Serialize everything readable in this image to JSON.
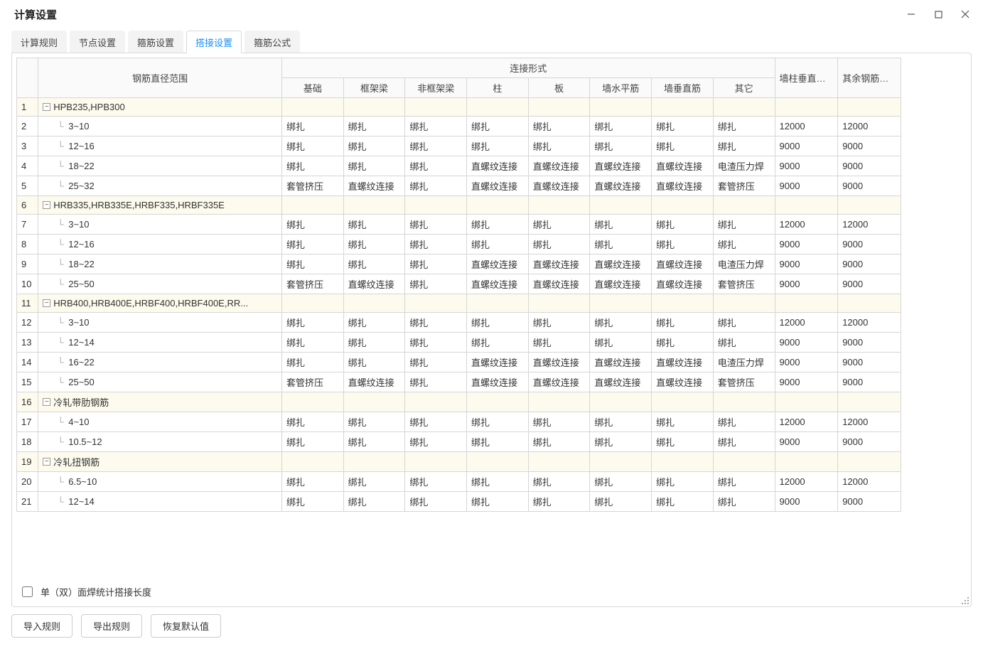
{
  "window": {
    "title": "计算设置"
  },
  "tabs": {
    "items": [
      {
        "id": "rule",
        "label": "计算规则"
      },
      {
        "id": "node",
        "label": "节点设置"
      },
      {
        "id": "stirrup",
        "label": "箍筋设置"
      },
      {
        "id": "lap",
        "label": "搭接设置"
      },
      {
        "id": "formula",
        "label": "箍筋公式"
      }
    ],
    "active_id": "lap"
  },
  "grid": {
    "header": {
      "range_col": "钢筋直径范围",
      "conn_group": "连接形式",
      "conn_cols": [
        "基础",
        "框架梁",
        "非框架梁",
        "柱",
        "板",
        "墙水平筋",
        "墙垂直筋",
        "其它"
      ],
      "fix_col_1": "墙柱垂直筋定尺",
      "fix_col_2": "其余钢筋定尺"
    },
    "rows": [
      {
        "n": 1,
        "type": "group",
        "label": "HPB235,HPB300"
      },
      {
        "n": 2,
        "type": "leaf",
        "label": "3~10",
        "conn": [
          "绑扎",
          "绑扎",
          "绑扎",
          "绑扎",
          "绑扎",
          "绑扎",
          "绑扎",
          "绑扎"
        ],
        "f1": "12000",
        "f2": "12000"
      },
      {
        "n": 3,
        "type": "leaf",
        "label": "12~16",
        "conn": [
          "绑扎",
          "绑扎",
          "绑扎",
          "绑扎",
          "绑扎",
          "绑扎",
          "绑扎",
          "绑扎"
        ],
        "f1": "9000",
        "f2": "9000"
      },
      {
        "n": 4,
        "type": "leaf",
        "label": "18~22",
        "conn": [
          "绑扎",
          "绑扎",
          "绑扎",
          "直螺纹连接",
          "直螺纹连接",
          "直螺纹连接",
          "直螺纹连接",
          "电渣压力焊"
        ],
        "f1": "9000",
        "f2": "9000"
      },
      {
        "n": 5,
        "type": "leaf",
        "label": "25~32",
        "conn": [
          "套管挤压",
          "直螺纹连接",
          "绑扎",
          "直螺纹连接",
          "直螺纹连接",
          "直螺纹连接",
          "直螺纹连接",
          "套管挤压"
        ],
        "f1": "9000",
        "f2": "9000"
      },
      {
        "n": 6,
        "type": "group",
        "label": "HRB335,HRB335E,HRBF335,HRBF335E"
      },
      {
        "n": 7,
        "type": "leaf",
        "label": "3~10",
        "conn": [
          "绑扎",
          "绑扎",
          "绑扎",
          "绑扎",
          "绑扎",
          "绑扎",
          "绑扎",
          "绑扎"
        ],
        "f1": "12000",
        "f2": "12000"
      },
      {
        "n": 8,
        "type": "leaf",
        "label": "12~16",
        "conn": [
          "绑扎",
          "绑扎",
          "绑扎",
          "绑扎",
          "绑扎",
          "绑扎",
          "绑扎",
          "绑扎"
        ],
        "f1": "9000",
        "f2": "9000"
      },
      {
        "n": 9,
        "type": "leaf",
        "label": "18~22",
        "conn": [
          "绑扎",
          "绑扎",
          "绑扎",
          "直螺纹连接",
          "直螺纹连接",
          "直螺纹连接",
          "直螺纹连接",
          "电渣压力焊"
        ],
        "f1": "9000",
        "f2": "9000"
      },
      {
        "n": 10,
        "type": "leaf",
        "label": "25~50",
        "conn": [
          "套管挤压",
          "直螺纹连接",
          "绑扎",
          "直螺纹连接",
          "直螺纹连接",
          "直螺纹连接",
          "直螺纹连接",
          "套管挤压"
        ],
        "f1": "9000",
        "f2": "9000"
      },
      {
        "n": 11,
        "type": "group",
        "label": "HRB400,HRB400E,HRBF400,HRBF400E,RR..."
      },
      {
        "n": 12,
        "type": "leaf",
        "label": "3~10",
        "conn": [
          "绑扎",
          "绑扎",
          "绑扎",
          "绑扎",
          "绑扎",
          "绑扎",
          "绑扎",
          "绑扎"
        ],
        "f1": "12000",
        "f2": "12000"
      },
      {
        "n": 13,
        "type": "leaf",
        "label": "12~14",
        "conn": [
          "绑扎",
          "绑扎",
          "绑扎",
          "绑扎",
          "绑扎",
          "绑扎",
          "绑扎",
          "绑扎"
        ],
        "f1": "9000",
        "f2": "9000"
      },
      {
        "n": 14,
        "type": "leaf",
        "label": "16~22",
        "conn": [
          "绑扎",
          "绑扎",
          "绑扎",
          "直螺纹连接",
          "直螺纹连接",
          "直螺纹连接",
          "直螺纹连接",
          "电渣压力焊"
        ],
        "f1": "9000",
        "f2": "9000"
      },
      {
        "n": 15,
        "type": "leaf",
        "label": "25~50",
        "conn": [
          "套管挤压",
          "直螺纹连接",
          "绑扎",
          "直螺纹连接",
          "直螺纹连接",
          "直螺纹连接",
          "直螺纹连接",
          "套管挤压"
        ],
        "f1": "9000",
        "f2": "9000"
      },
      {
        "n": 16,
        "type": "group",
        "label": "冷轧带肋钢筋"
      },
      {
        "n": 17,
        "type": "leaf",
        "label": "4~10",
        "conn": [
          "绑扎",
          "绑扎",
          "绑扎",
          "绑扎",
          "绑扎",
          "绑扎",
          "绑扎",
          "绑扎"
        ],
        "f1": "12000",
        "f2": "12000"
      },
      {
        "n": 18,
        "type": "leaf",
        "label": "10.5~12",
        "conn": [
          "绑扎",
          "绑扎",
          "绑扎",
          "绑扎",
          "绑扎",
          "绑扎",
          "绑扎",
          "绑扎"
        ],
        "f1": "9000",
        "f2": "9000"
      },
      {
        "n": 19,
        "type": "group",
        "label": "冷轧扭钢筋"
      },
      {
        "n": 20,
        "type": "leaf",
        "label": "6.5~10",
        "conn": [
          "绑扎",
          "绑扎",
          "绑扎",
          "绑扎",
          "绑扎",
          "绑扎",
          "绑扎",
          "绑扎"
        ],
        "f1": "12000",
        "f2": "12000"
      },
      {
        "n": 21,
        "type": "leaf",
        "label": "12~14",
        "conn": [
          "绑扎",
          "绑扎",
          "绑扎",
          "绑扎",
          "绑扎",
          "绑扎",
          "绑扎",
          "绑扎"
        ],
        "f1": "9000",
        "f2": "9000"
      }
    ]
  },
  "option": {
    "checkbox_label": "单（双）面焊统计搭接长度",
    "checked": false
  },
  "footer": {
    "import_label": "导入规则",
    "export_label": "导出规则",
    "reset_label": "恢复默认值"
  },
  "style": {
    "accent": "#1890ff",
    "border": "#d9d9d9",
    "group_bg": "#fdfbed",
    "header_bg": "#fafafa"
  }
}
